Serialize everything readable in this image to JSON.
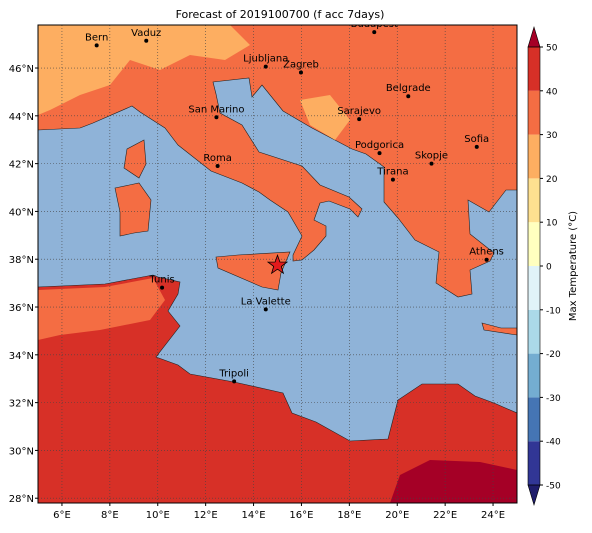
{
  "title": "Forecast of 2019100700 (f acc 7days)",
  "map": {
    "lon_range": [
      5,
      25
    ],
    "lat_range": [
      27.8,
      47.8
    ],
    "grid": true,
    "lon_ticks": [
      {
        "value": 6,
        "label": "6°E"
      },
      {
        "value": 8,
        "label": "8°E"
      },
      {
        "value": 10,
        "label": "10°E"
      },
      {
        "value": 12,
        "label": "12°E"
      },
      {
        "value": 14,
        "label": "14°E"
      },
      {
        "value": 16,
        "label": "16°E"
      },
      {
        "value": 18,
        "label": "18°E"
      },
      {
        "value": 20,
        "label": "20°E"
      },
      {
        "value": 22,
        "label": "22°E"
      },
      {
        "value": 24,
        "label": "24°E"
      }
    ],
    "lat_ticks": [
      {
        "value": 28,
        "label": "28°N"
      },
      {
        "value": 30,
        "label": "30°N"
      },
      {
        "value": 32,
        "label": "32°N"
      },
      {
        "value": 34,
        "label": "34°N"
      },
      {
        "value": 36,
        "label": "36°N"
      },
      {
        "value": 38,
        "label": "38°N"
      },
      {
        "value": 40,
        "label": "40°N"
      },
      {
        "value": 42,
        "label": "42°N"
      },
      {
        "value": 44,
        "label": "44°N"
      },
      {
        "value": 46,
        "label": "46°N"
      }
    ],
    "cities": [
      {
        "name": "Bern",
        "lon": 7.45,
        "lat": 46.95
      },
      {
        "name": "Vaduz",
        "lon": 9.52,
        "lat": 47.14
      },
      {
        "name": "Ljubljana",
        "lon": 14.51,
        "lat": 46.06
      },
      {
        "name": "Zagreb",
        "lon": 15.98,
        "lat": 45.81
      },
      {
        "name": "Budapest",
        "lon": 19.04,
        "lat": 47.5
      },
      {
        "name": "Belgrade",
        "lon": 20.46,
        "lat": 44.82
      },
      {
        "name": "San Marino",
        "lon": 12.45,
        "lat": 43.94
      },
      {
        "name": "Sarajevo",
        "lon": 18.41,
        "lat": 43.86
      },
      {
        "name": "Podgorica",
        "lon": 19.26,
        "lat": 42.44
      },
      {
        "name": "Sofia",
        "lon": 23.32,
        "lat": 42.7
      },
      {
        "name": "Roma",
        "lon": 12.5,
        "lat": 41.9
      },
      {
        "name": "Skopje",
        "lon": 21.43,
        "lat": 42.0
      },
      {
        "name": "Tirana",
        "lon": 19.82,
        "lat": 41.33
      },
      {
        "name": "Athens",
        "lon": 23.73,
        "lat": 37.98
      },
      {
        "name": "Tunis",
        "lon": 10.18,
        "lat": 36.81
      },
      {
        "name": "La Valette",
        "lon": 14.51,
        "lat": 35.9
      },
      {
        "name": "Tripoli",
        "lon": 13.19,
        "lat": 32.89
      }
    ],
    "marker": {
      "lon": 15.0,
      "lat": 37.75,
      "color": "#e31a1c"
    }
  },
  "colorbar": {
    "label": "Max Temperature (°C)",
    "ticks": [
      -50,
      -40,
      -30,
      -20,
      -10,
      0,
      10,
      20,
      30,
      40,
      50
    ],
    "colors": [
      "#313695",
      "#4575b4",
      "#74add1",
      "#abd9e9",
      "#e0f3f8",
      "#ffffbf",
      "#fee090",
      "#fdae61",
      "#f46d43",
      "#d73027"
    ],
    "under_color": "#1f1d6b",
    "over_color": "#a50026"
  }
}
